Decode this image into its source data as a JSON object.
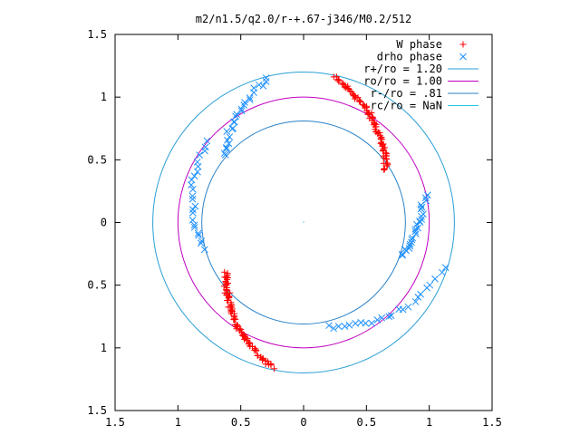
{
  "chart_data": {
    "type": "scatter",
    "title": "m2/n1.5/q2.0/r-+.67-j346/M0.2/512",
    "xlim": [
      -1.5,
      1.5
    ],
    "ylim": [
      -1.5,
      1.5
    ],
    "xticks": [
      -1.5,
      -1,
      -0.5,
      0,
      0.5,
      1,
      1.5
    ],
    "yticks": [
      -1.5,
      -1,
      -0.5,
      0,
      0.5,
      1,
      1.5
    ],
    "xtick_labels": [
      "1.5",
      "1",
      "0.5",
      "0",
      "0.5",
      "1",
      "1.5"
    ],
    "ytick_labels": [
      "1.5",
      "1",
      "0.5",
      "0",
      "0.5",
      "1",
      "1.5"
    ],
    "grid": false,
    "legend_position": "top-right",
    "series": [
      {
        "name": "W phase",
        "kind": "points",
        "marker": "plus",
        "color": "#ff0000",
        "arcs": [
          {
            "r_min": 0.78,
            "r_max": 1.18,
            "theta_start": 78,
            "theta_end": 33,
            "n": 90
          },
          {
            "r_min": 0.73,
            "r_max": 1.18,
            "theta_start": 258,
            "theta_end": 213,
            "n": 90
          }
        ]
      },
      {
        "name": "drho phase",
        "kind": "points",
        "marker": "cross",
        "color": "#1e90ff",
        "arcs": [
          {
            "r_min": 0.82,
            "r_max": 1.18,
            "theta_start": 104,
            "theta_end": 140,
            "n": 26
          },
          {
            "r_min": 0.82,
            "r_max": 0.99,
            "theta_start": 140,
            "theta_end": 195,
            "n": 24
          },
          {
            "r_min": 0.82,
            "r_max": 0.99,
            "theta_start": 12,
            "theta_end": -18,
            "n": 26
          },
          {
            "r_min": 0.85,
            "r_max": 1.18,
            "theta_start": -18,
            "theta_end": -76,
            "n": 24
          }
        ]
      },
      {
        "name": "r+/ro = 1.20",
        "kind": "circle",
        "r": 1.2,
        "color": "#2a9fd6"
      },
      {
        "name": "ro/ro = 1.00",
        "kind": "circle",
        "r": 1.0,
        "color": "#c000c0"
      },
      {
        "name": "r-/ro = .81",
        "kind": "circle",
        "r": 0.81,
        "color": "#2a82c8"
      },
      {
        "name": "rc/ro = NaN",
        "kind": "circle",
        "r": null,
        "color": "#20c8e0"
      }
    ]
  }
}
